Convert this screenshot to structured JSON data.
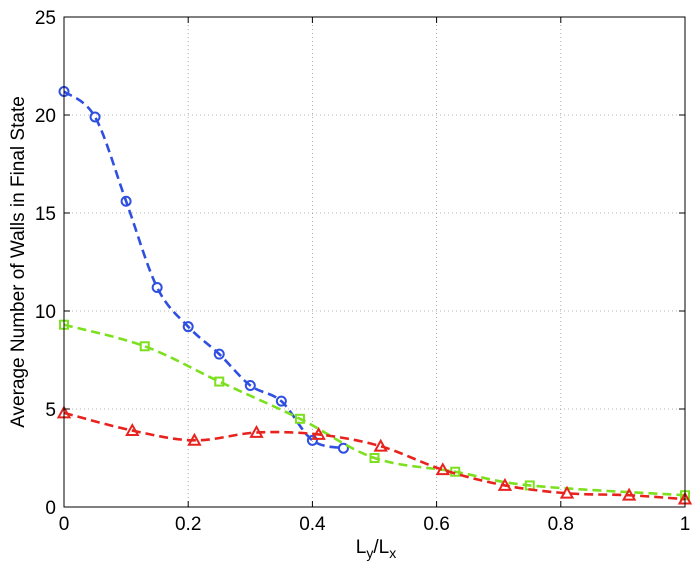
{
  "chart_data": {
    "type": "line",
    "title": "",
    "xlabel": "L_y/L_x",
    "xlabel_main": "L",
    "xlabel_sub1": "y",
    "xlabel_slash": "/L",
    "xlabel_sub2": "x",
    "ylabel": "Average Number of Walls in Final State",
    "xlim": [
      0,
      1
    ],
    "ylim": [
      0,
      25
    ],
    "xticks": [
      0,
      0.2,
      0.4,
      0.6,
      0.8,
      1
    ],
    "yticks": [
      0,
      5,
      10,
      15,
      20,
      25
    ],
    "xtick_labels": [
      "0",
      "0.2",
      "0.4",
      "0.6",
      "0.8",
      "1"
    ],
    "ytick_labels": [
      "0",
      "5",
      "10",
      "15",
      "20",
      "25"
    ],
    "grid": true,
    "series": [
      {
        "color": "#2f4fe0",
        "marker": "circle",
        "x": [
          0.0,
          0.05,
          0.1,
          0.15,
          0.2,
          0.25,
          0.3,
          0.35,
          0.4,
          0.45
        ],
        "y": [
          21.2,
          19.9,
          15.6,
          11.2,
          9.2,
          7.8,
          6.2,
          5.4,
          3.4,
          3.0
        ]
      },
      {
        "color": "#7de01e",
        "marker": "square",
        "x": [
          0.0,
          0.13,
          0.25,
          0.38,
          0.5,
          0.63,
          0.75,
          1.0
        ],
        "y": [
          9.3,
          8.2,
          6.4,
          4.5,
          2.5,
          1.8,
          1.1,
          0.6
        ]
      },
      {
        "color": "#e8231e",
        "marker": "triangle",
        "x": [
          0.0,
          0.11,
          0.21,
          0.31,
          0.41,
          0.51,
          0.61,
          0.71,
          0.81,
          0.91,
          1.0
        ],
        "y": [
          4.8,
          3.9,
          3.4,
          3.8,
          3.7,
          3.1,
          1.9,
          1.1,
          0.7,
          0.6,
          0.4
        ]
      }
    ]
  }
}
